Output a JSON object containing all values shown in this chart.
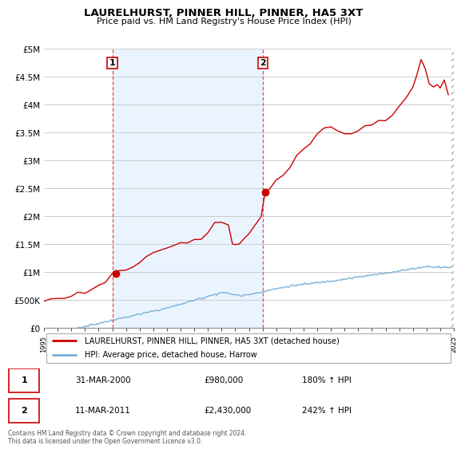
{
  "title": "LAURELHURST, PINNER HILL, PINNER, HA5 3XT",
  "subtitle": "Price paid vs. HM Land Registry's House Price Index (HPI)",
  "red_line_label": "LAURELHURST, PINNER HILL, PINNER, HA5 3XT (detached house)",
  "blue_line_label": "HPI: Average price, detached house, Harrow",
  "annotation1_label": "1",
  "annotation1_date": "31-MAR-2000",
  "annotation1_price": "£980,000",
  "annotation1_hpi": "180% ↑ HPI",
  "annotation1_year": 2000,
  "annotation1_value": 980000,
  "annotation2_label": "2",
  "annotation2_date": "11-MAR-2011",
  "annotation2_price": "£2,430,000",
  "annotation2_hpi": "242% ↑ HPI",
  "annotation2_year": 2011,
  "annotation2_value": 2430000,
  "footnote": "Contains HM Land Registry data © Crown copyright and database right 2024.\nThis data is licensed under the Open Government Licence v3.0.",
  "xmin": 1995,
  "xmax": 2025,
  "ymin": 0,
  "ymax": 5000000,
  "red_color": "#cc0000",
  "blue_color": "#7ab0d4",
  "dashed_color": "#dd4444",
  "shade_color": "#ddeeff",
  "background_color": "#ffffff",
  "plot_bg_color": "#ffffff",
  "grid_color": "#cccccc",
  "hatch_color": "#aaaaaa"
}
